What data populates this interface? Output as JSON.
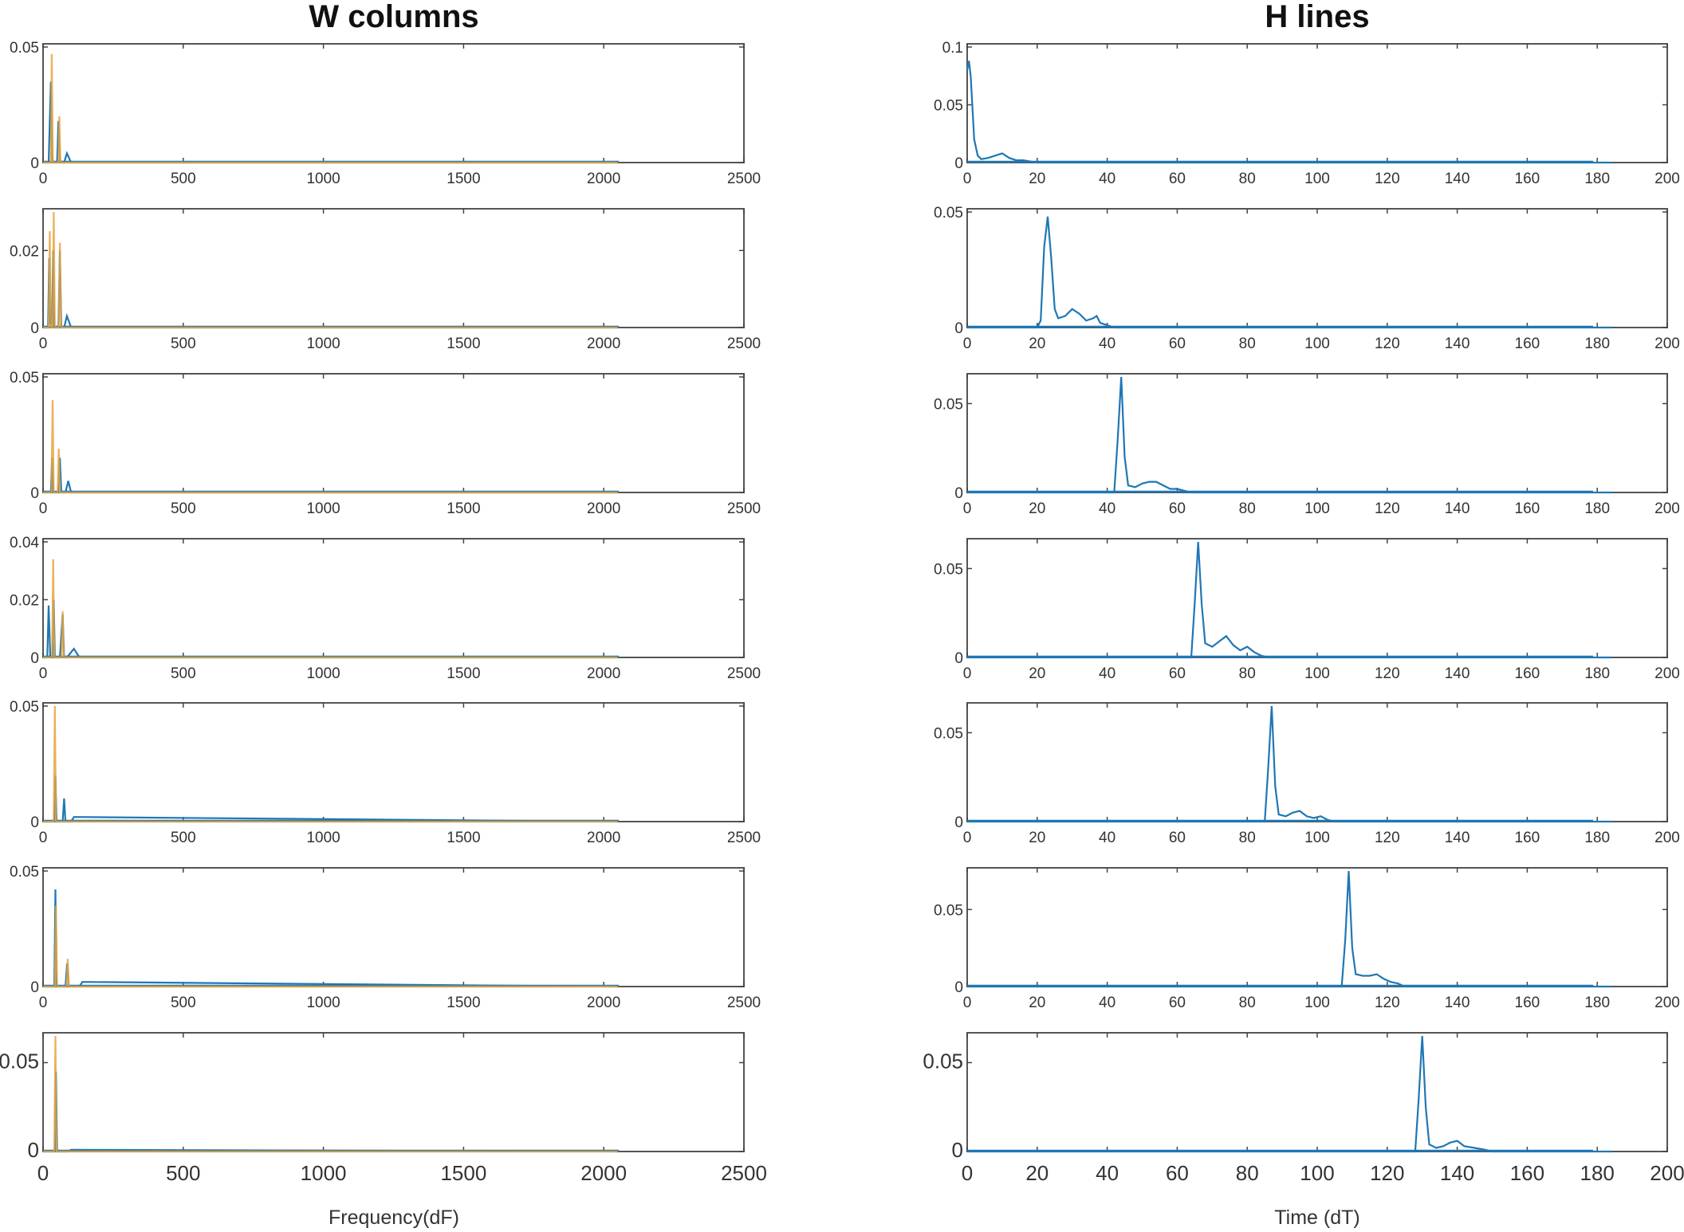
{
  "figure": {
    "left_title": "W columns",
    "right_title": "H lines",
    "left_xlabel": "Frequency(dF)",
    "right_xlabel": "Time (dT)"
  },
  "colors": {
    "primary": "#1f77b4",
    "secondary": "#e8a33d",
    "tertiary": "#d62728",
    "axis": "#555555"
  },
  "chart_data": [
    {
      "type": "line",
      "panel": "W-1",
      "column": "left",
      "title": "W columns",
      "xlabel": "",
      "xlim": [
        0,
        2500
      ],
      "ylim": [
        0,
        0.05
      ],
      "xticks": [
        0,
        500,
        1000,
        1500,
        2000,
        2500
      ],
      "ytick_labels": [
        "0",
        "0.05"
      ],
      "series": [
        {
          "name": "blue",
          "x": [
            0,
            20,
            28,
            32,
            36,
            42,
            50,
            55,
            60,
            68,
            75,
            85,
            100,
            120,
            2050
          ],
          "y": [
            0,
            0,
            0.035,
            0.002,
            0,
            0,
            0,
            0.018,
            0.001,
            0,
            0,
            0.004,
            0,
            0,
            0
          ]
        },
        {
          "name": "orange",
          "x": [
            0,
            28,
            31,
            35,
            55,
            58,
            62,
            2050
          ],
          "y": [
            0,
            0,
            0.047,
            0,
            0,
            0.02,
            0,
            0
          ]
        }
      ]
    },
    {
      "type": "line",
      "panel": "W-2",
      "column": "left",
      "title": "",
      "xlabel": "",
      "xlim": [
        0,
        2500
      ],
      "ylim": [
        0,
        0.03
      ],
      "xticks": [
        0,
        500,
        1000,
        1500,
        2000,
        2500
      ],
      "ytick_labels": [
        "0",
        "0.02"
      ],
      "series": [
        {
          "name": "blue",
          "x": [
            0,
            18,
            22,
            26,
            32,
            36,
            40,
            55,
            60,
            65,
            75,
            85,
            100,
            2050
          ],
          "y": [
            0,
            0,
            0.018,
            0.001,
            0,
            0.02,
            0,
            0,
            0.02,
            0,
            0,
            0.003,
            0,
            0
          ]
        },
        {
          "name": "orange",
          "x": [
            0,
            20,
            24,
            28,
            34,
            38,
            42,
            56,
            60,
            64,
            2050
          ],
          "y": [
            0,
            0,
            0.025,
            0,
            0,
            0.03,
            0,
            0,
            0.022,
            0,
            0
          ]
        }
      ]
    },
    {
      "type": "line",
      "panel": "W-3",
      "column": "left",
      "title": "",
      "xlabel": "",
      "xlim": [
        0,
        2500
      ],
      "ylim": [
        0,
        0.05
      ],
      "xticks": [
        0,
        500,
        1000,
        1500,
        2000,
        2500
      ],
      "ytick_labels": [
        "0",
        "0.05"
      ],
      "series": [
        {
          "name": "blue",
          "x": [
            0,
            28,
            32,
            36,
            45,
            55,
            60,
            65,
            80,
            90,
            100,
            2050
          ],
          "y": [
            0,
            0,
            0.015,
            0,
            0,
            0,
            0.015,
            0,
            0,
            0.005,
            0,
            0
          ]
        },
        {
          "name": "orange",
          "x": [
            0,
            30,
            34,
            38,
            52,
            56,
            60,
            2050
          ],
          "y": [
            0,
            0,
            0.04,
            0,
            0,
            0.019,
            0,
            0
          ]
        }
      ]
    },
    {
      "type": "line",
      "panel": "W-4",
      "column": "left",
      "title": "",
      "xlabel": "",
      "xlim": [
        0,
        2500
      ],
      "ylim": [
        0,
        0.04
      ],
      "xticks": [
        0,
        500,
        1000,
        1500,
        2000,
        2500
      ],
      "ytick_labels": [
        "0",
        "0.02",
        "0.04"
      ],
      "series": [
        {
          "name": "blue",
          "x": [
            0,
            15,
            20,
            26,
            34,
            38,
            42,
            60,
            70,
            75,
            85,
            110,
            130,
            2050
          ],
          "y": [
            0,
            0,
            0.018,
            0,
            0,
            0.02,
            0,
            0,
            0.015,
            0,
            0,
            0.003,
            0,
            0
          ]
        },
        {
          "name": "orange",
          "x": [
            0,
            32,
            36,
            40,
            66,
            70,
            74,
            2050
          ],
          "y": [
            0,
            0,
            0.034,
            0,
            0,
            0.016,
            0,
            0
          ]
        }
      ]
    },
    {
      "type": "line",
      "panel": "W-5",
      "column": "left",
      "title": "",
      "xlabel": "",
      "xlim": [
        0,
        2500
      ],
      "ylim": [
        0,
        0.05
      ],
      "xticks": [
        0,
        500,
        1000,
        1500,
        2000,
        2500
      ],
      "ytick_labels": [
        "0",
        "0.05"
      ],
      "series": [
        {
          "name": "blue",
          "x": [
            0,
            40,
            44,
            48,
            70,
            75,
            80,
            100,
            110,
            2050
          ],
          "y": [
            0,
            0,
            0.02,
            0,
            0,
            0.01,
            0,
            0,
            0.002,
            0
          ]
        },
        {
          "name": "orange",
          "x": [
            0,
            38,
            42,
            46,
            2050
          ],
          "y": [
            0,
            0,
            0.05,
            0,
            0
          ]
        }
      ]
    },
    {
      "type": "line",
      "panel": "W-6",
      "column": "left",
      "title": "",
      "xlabel": "",
      "xlim": [
        0,
        2500
      ],
      "ylim": [
        0,
        0.05
      ],
      "xticks": [
        0,
        500,
        1000,
        1500,
        2000,
        2500
      ],
      "ytick_labels": [
        "0",
        "0.05"
      ],
      "series": [
        {
          "name": "blue",
          "x": [
            0,
            40,
            44,
            48,
            80,
            86,
            92,
            130,
            140,
            2050
          ],
          "y": [
            0,
            0,
            0.042,
            0,
            0,
            0.01,
            0,
            0,
            0.002,
            0
          ]
        },
        {
          "name": "orange",
          "x": [
            0,
            42,
            46,
            50,
            84,
            88,
            92,
            2050
          ],
          "y": [
            0,
            0,
            0.035,
            0,
            0,
            0.012,
            0,
            0
          ]
        }
      ]
    },
    {
      "type": "line",
      "panel": "W-7",
      "column": "left",
      "title": "",
      "xlabel": "Frequency(dF)",
      "xlim": [
        0,
        2500
      ],
      "ylim": [
        0,
        0.065
      ],
      "xticks": [
        0,
        500,
        1000,
        1500,
        2000,
        2500
      ],
      "ytick_labels": [
        "0",
        "0.05"
      ],
      "series": [
        {
          "name": "blue",
          "x": [
            0,
            42,
            46,
            50,
            90,
            100,
            2050
          ],
          "y": [
            0,
            0,
            0.045,
            0,
            0,
            0.001,
            0
          ]
        },
        {
          "name": "orange",
          "x": [
            0,
            40,
            44,
            48,
            2050
          ],
          "y": [
            0,
            0,
            0.065,
            0,
            0
          ]
        }
      ]
    },
    {
      "type": "line",
      "panel": "H-1",
      "column": "right",
      "title": "H lines",
      "xlabel": "",
      "xlim": [
        0,
        200
      ],
      "ylim": [
        0,
        0.1
      ],
      "xticks": [
        0,
        20,
        40,
        60,
        80,
        100,
        120,
        140,
        160,
        180,
        200
      ],
      "ytick_labels": [
        "0",
        "0.05",
        "0.1"
      ],
      "series": [
        {
          "name": "H",
          "x": [
            0,
            0.5,
            1,
            2,
            3,
            4,
            6,
            8,
            10,
            12,
            14,
            16,
            18,
            20,
            184
          ],
          "y": [
            0.08,
            0.088,
            0.075,
            0.02,
            0.006,
            0.003,
            0.004,
            0.006,
            0.008,
            0.004,
            0.002,
            0.002,
            0.001,
            0,
            0
          ]
        }
      ]
    },
    {
      "type": "line",
      "panel": "H-2",
      "column": "right",
      "title": "",
      "xlabel": "",
      "xlim": [
        0,
        200
      ],
      "ylim": [
        0,
        0.05
      ],
      "xticks": [
        0,
        20,
        40,
        60,
        80,
        100,
        120,
        140,
        160,
        180,
        200
      ],
      "ytick_labels": [
        "0",
        "0.05"
      ],
      "series": [
        {
          "name": "H",
          "x": [
            0,
            20,
            21,
            22,
            23,
            24,
            25,
            26,
            28,
            30,
            32,
            34,
            36,
            37,
            38,
            40,
            42,
            44,
            184
          ],
          "y": [
            0,
            0,
            0.003,
            0.035,
            0.048,
            0.03,
            0.008,
            0.004,
            0.005,
            0.008,
            0.006,
            0.003,
            0.004,
            0.005,
            0.002,
            0.001,
            0,
            0,
            0
          ]
        }
      ]
    },
    {
      "type": "line",
      "panel": "H-3",
      "column": "right",
      "title": "",
      "xlabel": "",
      "xlim": [
        0,
        200
      ],
      "ylim": [
        0,
        0.065
      ],
      "xticks": [
        0,
        20,
        40,
        60,
        80,
        100,
        120,
        140,
        160,
        180,
        200
      ],
      "ytick_labels": [
        "0",
        "0.05"
      ],
      "series": [
        {
          "name": "H",
          "x": [
            0,
            42,
            43,
            44,
            45,
            46,
            48,
            50,
            52,
            54,
            56,
            58,
            60,
            62,
            64,
            184
          ],
          "y": [
            0,
            0,
            0.03,
            0.065,
            0.02,
            0.004,
            0.003,
            0.005,
            0.006,
            0.006,
            0.004,
            0.002,
            0.002,
            0.001,
            0,
            0
          ]
        }
      ]
    },
    {
      "type": "line",
      "panel": "H-4",
      "column": "right",
      "title": "",
      "xlabel": "",
      "xlim": [
        0,
        200
      ],
      "ylim": [
        0,
        0.065
      ],
      "xticks": [
        0,
        20,
        40,
        60,
        80,
        100,
        120,
        140,
        160,
        180,
        200
      ],
      "ytick_labels": [
        "0",
        "0.05"
      ],
      "series": [
        {
          "name": "H",
          "x": [
            0,
            64,
            65,
            66,
            67,
            68,
            70,
            72,
            74,
            76,
            78,
            80,
            82,
            84,
            86,
            184
          ],
          "y": [
            0,
            0,
            0.03,
            0.065,
            0.03,
            0.008,
            0.006,
            0.009,
            0.012,
            0.007,
            0.004,
            0.006,
            0.003,
            0.001,
            0,
            0
          ]
        }
      ]
    },
    {
      "type": "line",
      "panel": "H-5",
      "column": "right",
      "title": "",
      "xlabel": "",
      "xlim": [
        0,
        200
      ],
      "ylim": [
        0,
        0.065
      ],
      "xticks": [
        0,
        20,
        40,
        60,
        80,
        100,
        120,
        140,
        160,
        180,
        200
      ],
      "ytick_labels": [
        "0",
        "0.05"
      ],
      "series": [
        {
          "name": "H",
          "x": [
            0,
            85,
            86,
            87,
            88,
            89,
            91,
            93,
            95,
            97,
            99,
            101,
            103,
            105,
            184
          ],
          "y": [
            0,
            0,
            0.03,
            0.065,
            0.02,
            0.004,
            0.003,
            0.005,
            0.006,
            0.003,
            0.002,
            0.003,
            0.001,
            0,
            0
          ]
        }
      ]
    },
    {
      "type": "line",
      "panel": "H-6",
      "column": "right",
      "title": "",
      "xlabel": "",
      "xlim": [
        0,
        200
      ],
      "ylim": [
        0,
        0.075
      ],
      "xticks": [
        0,
        20,
        40,
        60,
        80,
        100,
        120,
        140,
        160,
        180,
        200
      ],
      "ytick_labels": [
        "0",
        "0.05"
      ],
      "series": [
        {
          "name": "H",
          "x": [
            0,
            107,
            108,
            109,
            110,
            111,
            113,
            115,
            117,
            119,
            121,
            123,
            125,
            184
          ],
          "y": [
            0,
            0,
            0.03,
            0.075,
            0.025,
            0.008,
            0.007,
            0.007,
            0.008,
            0.005,
            0.003,
            0.002,
            0,
            0
          ]
        }
      ]
    },
    {
      "type": "line",
      "panel": "H-7",
      "column": "right",
      "title": "",
      "xlabel": "Time (dT)",
      "xlim": [
        0,
        200
      ],
      "ylim": [
        0,
        0.065
      ],
      "xticks": [
        0,
        20,
        40,
        60,
        80,
        100,
        120,
        140,
        160,
        180,
        200
      ],
      "ytick_labels": [
        "0",
        "0.05"
      ],
      "series": [
        {
          "name": "H",
          "x": [
            0,
            128,
            129,
            130,
            131,
            132,
            134,
            136,
            138,
            140,
            142,
            145,
            148,
            150,
            184
          ],
          "y": [
            0,
            0,
            0.03,
            0.065,
            0.025,
            0.004,
            0.002,
            0.003,
            0.005,
            0.006,
            0.003,
            0.002,
            0.001,
            0,
            0
          ]
        }
      ]
    }
  ]
}
